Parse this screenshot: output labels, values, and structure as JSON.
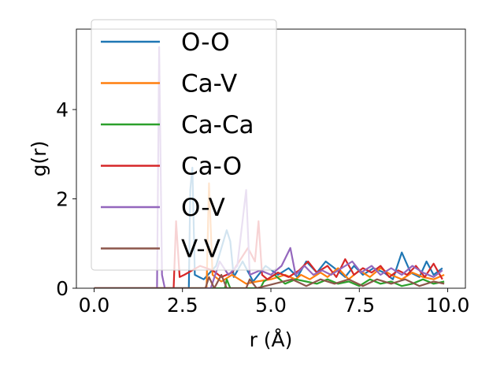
{
  "chart_data": {
    "type": "line",
    "xlabel": "r (Å)",
    "ylabel": "g(r)",
    "xlim": [
      -0.5,
      10.5
    ],
    "ylim": [
      0,
      5.8
    ],
    "xticks": [
      "0.0",
      "2.5",
      "5.0",
      "7.5",
      "10.0"
    ],
    "xtick_values": [
      0,
      2.5,
      5,
      7.5,
      10
    ],
    "yticks": [
      "0",
      "2",
      "4"
    ],
    "ytick_values": [
      0,
      2,
      4
    ],
    "grid": false,
    "legend_position": "top-left",
    "series": [
      {
        "name": "O-O",
        "color": "#1f77b4",
        "points": [
          [
            0,
            0
          ],
          [
            2.68,
            0
          ],
          [
            2.72,
            2.2
          ],
          [
            2.78,
            2.7
          ],
          [
            2.85,
            0.3
          ],
          [
            3.1,
            0.2
          ],
          [
            3.45,
            0.5
          ],
          [
            3.75,
            1.3
          ],
          [
            3.85,
            1.05
          ],
          [
            3.95,
            0.25
          ],
          [
            4.2,
            0.6
          ],
          [
            4.5,
            0.15
          ],
          [
            4.85,
            0.5
          ],
          [
            5.2,
            0.3
          ],
          [
            5.5,
            0.45
          ],
          [
            5.75,
            0.25
          ],
          [
            6.0,
            0.6
          ],
          [
            6.3,
            0.35
          ],
          [
            6.55,
            0.6
          ],
          [
            6.8,
            0.45
          ],
          [
            7.1,
            0.25
          ],
          [
            7.35,
            0.5
          ],
          [
            7.6,
            0.3
          ],
          [
            7.9,
            0.45
          ],
          [
            8.2,
            0.35
          ],
          [
            8.45,
            0.2
          ],
          [
            8.7,
            0.8
          ],
          [
            8.95,
            0.35
          ],
          [
            9.2,
            0.25
          ],
          [
            9.4,
            0.6
          ],
          [
            9.6,
            0.3
          ],
          [
            9.85,
            0.45
          ]
        ]
      },
      {
        "name": "Ca-V",
        "color": "#ff7f0e",
        "points": [
          [
            0,
            0
          ],
          [
            3.18,
            0
          ],
          [
            3.25,
            2.35
          ],
          [
            3.35,
            0.3
          ],
          [
            3.6,
            0.15
          ],
          [
            3.9,
            0.3
          ],
          [
            4.3,
            0.1
          ],
          [
            4.6,
            0.15
          ],
          [
            5.0,
            0.2
          ],
          [
            5.4,
            0.3
          ],
          [
            5.7,
            0.2
          ],
          [
            5.85,
            0.3
          ],
          [
            6.1,
            0.2
          ],
          [
            6.4,
            0.35
          ],
          [
            6.6,
            0.25
          ],
          [
            6.9,
            0.45
          ],
          [
            7.2,
            0.2
          ],
          [
            7.5,
            0.4
          ],
          [
            7.8,
            0.25
          ],
          [
            8.1,
            0.45
          ],
          [
            8.4,
            0.3
          ],
          [
            8.7,
            0.2
          ],
          [
            9.0,
            0.35
          ],
          [
            9.3,
            0.25
          ],
          [
            9.6,
            0.2
          ],
          [
            9.9,
            0.3
          ]
        ]
      },
      {
        "name": "Ca-Ca",
        "color": "#2ca02c",
        "points": [
          [
            0,
            0
          ],
          [
            3.7,
            0
          ],
          [
            3.75,
            0.2
          ],
          [
            3.85,
            0
          ],
          [
            4.7,
            0
          ],
          [
            4.8,
            0.15
          ],
          [
            5.1,
            0.3
          ],
          [
            5.4,
            0.1
          ],
          [
            5.7,
            0.2
          ],
          [
            6.0,
            0.15
          ],
          [
            6.3,
            0.1
          ],
          [
            6.6,
            0.2
          ],
          [
            6.9,
            0.1
          ],
          [
            7.2,
            0.15
          ],
          [
            7.5,
            0.05
          ],
          [
            7.8,
            0.2
          ],
          [
            8.1,
            0.1
          ],
          [
            8.4,
            0.15
          ],
          [
            8.7,
            0.05
          ],
          [
            9.0,
            0.1
          ],
          [
            9.3,
            0.2
          ],
          [
            9.6,
            0.1
          ],
          [
            9.9,
            0.15
          ]
        ]
      },
      {
        "name": "Ca-O",
        "color": "#d62728",
        "points": [
          [
            0,
            0
          ],
          [
            2.25,
            0
          ],
          [
            2.32,
            1.5
          ],
          [
            2.42,
            0.25
          ],
          [
            2.55,
            0.3
          ],
          [
            3.0,
            0.5
          ],
          [
            3.35,
            0.4
          ],
          [
            3.6,
            0.25
          ],
          [
            3.9,
            0.35
          ],
          [
            4.35,
            0.9
          ],
          [
            4.55,
            0.6
          ],
          [
            4.65,
            1.5
          ],
          [
            4.75,
            0.3
          ],
          [
            4.9,
            0.2
          ],
          [
            5.2,
            0.35
          ],
          [
            5.5,
            0.25
          ],
          [
            5.8,
            0.4
          ],
          [
            6.05,
            0.6
          ],
          [
            6.3,
            0.35
          ],
          [
            6.6,
            0.5
          ],
          [
            6.85,
            0.25
          ],
          [
            7.1,
            0.65
          ],
          [
            7.35,
            0.3
          ],
          [
            7.6,
            0.45
          ],
          [
            7.85,
            0.35
          ],
          [
            8.1,
            0.5
          ],
          [
            8.35,
            0.25
          ],
          [
            8.6,
            0.4
          ],
          [
            8.85,
            0.3
          ],
          [
            9.1,
            0.5
          ],
          [
            9.35,
            0.25
          ],
          [
            9.6,
            0.55
          ],
          [
            9.85,
            0.2
          ]
        ]
      },
      {
        "name": "O-V",
        "color": "#9467bd",
        "points": [
          [
            0,
            0
          ],
          [
            1.78,
            0
          ],
          [
            1.84,
            5.4
          ],
          [
            1.92,
            0.3
          ],
          [
            2.0,
            0
          ],
          [
            3.3,
            0
          ],
          [
            3.55,
            0.6
          ],
          [
            3.8,
            0.3
          ],
          [
            4.05,
            0.5
          ],
          [
            4.3,
            2.2
          ],
          [
            4.4,
            0.3
          ],
          [
            4.7,
            0.4
          ],
          [
            5.0,
            0.3
          ],
          [
            5.3,
            0.5
          ],
          [
            5.55,
            0.9
          ],
          [
            5.7,
            0.3
          ],
          [
            5.95,
            0.5
          ],
          [
            6.2,
            0.3
          ],
          [
            6.45,
            0.4
          ],
          [
            6.7,
            0.3
          ],
          [
            7.0,
            0.45
          ],
          [
            7.3,
            0.6
          ],
          [
            7.55,
            0.35
          ],
          [
            7.85,
            0.5
          ],
          [
            8.1,
            0.3
          ],
          [
            8.4,
            0.45
          ],
          [
            8.7,
            0.3
          ],
          [
            9.0,
            0.5
          ],
          [
            9.3,
            0.35
          ],
          [
            9.6,
            0.25
          ],
          [
            9.85,
            0.4
          ]
        ]
      },
      {
        "name": "V-V",
        "color": "#8c564b",
        "points": [
          [
            0,
            0
          ],
          [
            3.15,
            0
          ],
          [
            3.25,
            0.25
          ],
          [
            3.4,
            0
          ],
          [
            3.6,
            0.3
          ],
          [
            3.75,
            0
          ],
          [
            4.3,
            0
          ],
          [
            4.4,
            0.2
          ],
          [
            4.6,
            0
          ],
          [
            5.1,
            0.1
          ],
          [
            5.6,
            0.2
          ],
          [
            6.0,
            0.05
          ],
          [
            6.4,
            0.2
          ],
          [
            6.8,
            0.1
          ],
          [
            7.2,
            0.2
          ],
          [
            7.6,
            0.05
          ],
          [
            8.0,
            0.2
          ],
          [
            8.4,
            0.1
          ],
          [
            8.8,
            0.2
          ],
          [
            9.2,
            0.05
          ],
          [
            9.6,
            0.15
          ],
          [
            9.9,
            0.1
          ]
        ]
      }
    ]
  }
}
